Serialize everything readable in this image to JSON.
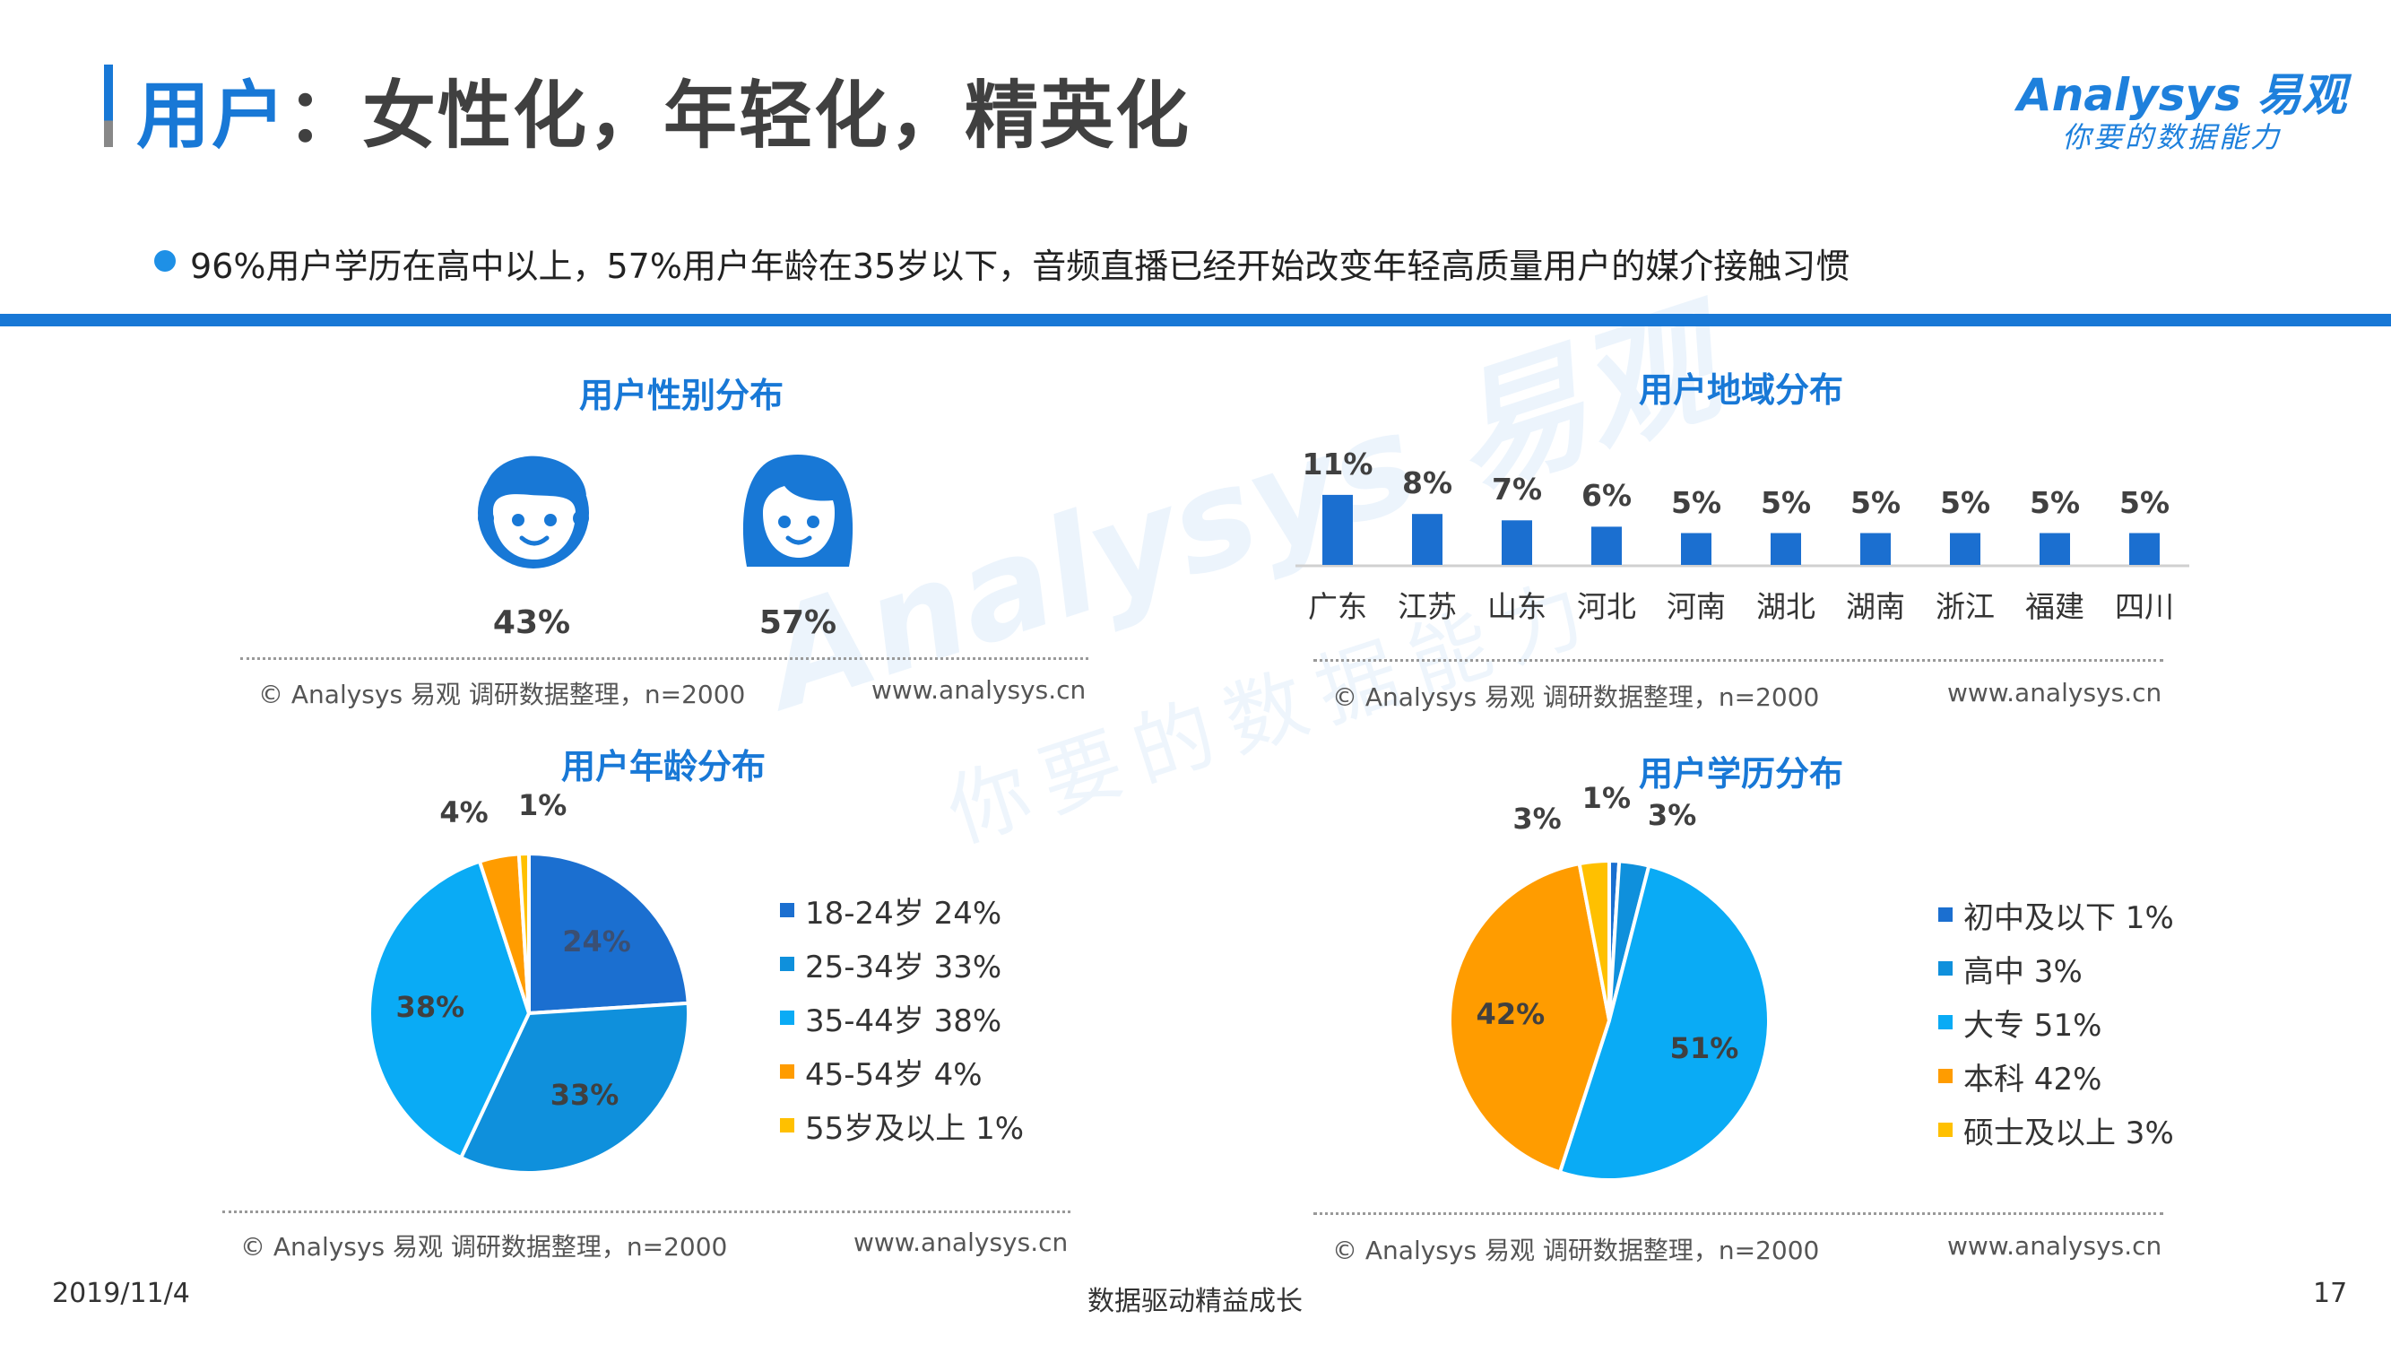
{
  "header": {
    "title_highlight": "用户",
    "title_rest": "：女性化，年轻化，精英化",
    "logo_name": "Analysys 易观",
    "logo_slogan": "你要的数据能力"
  },
  "summary": {
    "bullet": "96%用户学历在高中以上，57%用户年龄在35岁以下，音频直播已经开始改变年轻高质量用户的媒介接触习惯"
  },
  "colors": {
    "accent": "#1878d6",
    "blue_dark": "#1b6fd0",
    "blue_mid": "#0f90dc",
    "blue_light": "#0aabf5",
    "orange": "#ff9c00",
    "yellow": "#ffc000"
  },
  "source_note": "© Analysys 易观 调研数据整理，n=2000",
  "url_note": "www.analysys.cn",
  "panels": {
    "gender": {
      "title": "用户性别分布",
      "icons": [
        "boy-face-icon",
        "girl-face-icon"
      ]
    },
    "region": {
      "title": "用户地域分布"
    },
    "age": {
      "title": "用户年龄分布"
    },
    "education": {
      "title": "用户学历分布"
    }
  },
  "chart_data": [
    {
      "type": "pictogram",
      "title": "用户性别分布",
      "categories": [
        "男",
        "女"
      ],
      "values": [
        43,
        57
      ],
      "labels": [
        "43%",
        "57%"
      ]
    },
    {
      "type": "bar",
      "title": "用户地域分布",
      "categories": [
        "广东",
        "江苏",
        "山东",
        "河北",
        "河南",
        "湖北",
        "湖南",
        "浙江",
        "福建",
        "四川"
      ],
      "values": [
        11,
        8,
        7,
        6,
        5,
        5,
        5,
        5,
        5,
        5
      ],
      "labels": [
        "11%",
        "8%",
        "7%",
        "6%",
        "5%",
        "5%",
        "5%",
        "5%",
        "5%",
        "5%"
      ],
      "unit": "%"
    },
    {
      "type": "pie",
      "title": "用户年龄分布",
      "categories": [
        "18-24岁",
        "25-34岁",
        "35-44岁",
        "45-54岁",
        "55岁及以上"
      ],
      "values": [
        24,
        33,
        38,
        4,
        1
      ],
      "legend": [
        "18-24岁 24%",
        "25-34岁 33%",
        "35-44岁 38%",
        "45-54岁 4%",
        "55岁及以上 1%"
      ],
      "labels": [
        "24%",
        "33%",
        "38%",
        "4%",
        "1%"
      ]
    },
    {
      "type": "pie",
      "title": "用户学历分布",
      "categories": [
        "初中及以下",
        "高中",
        "大专",
        "本科",
        "硕士及以上"
      ],
      "values": [
        1,
        3,
        51,
        42,
        3
      ],
      "legend": [
        "初中及以下 1%",
        "高中 3%",
        "大专 51%",
        "本科 42%",
        "硕士及以上 3%"
      ],
      "labels": [
        "1%",
        "3%",
        "51%",
        "42%",
        "3%"
      ]
    }
  ],
  "footer": {
    "date": "2019/11/4",
    "center": "数据驱动精益成长",
    "page": "17"
  }
}
